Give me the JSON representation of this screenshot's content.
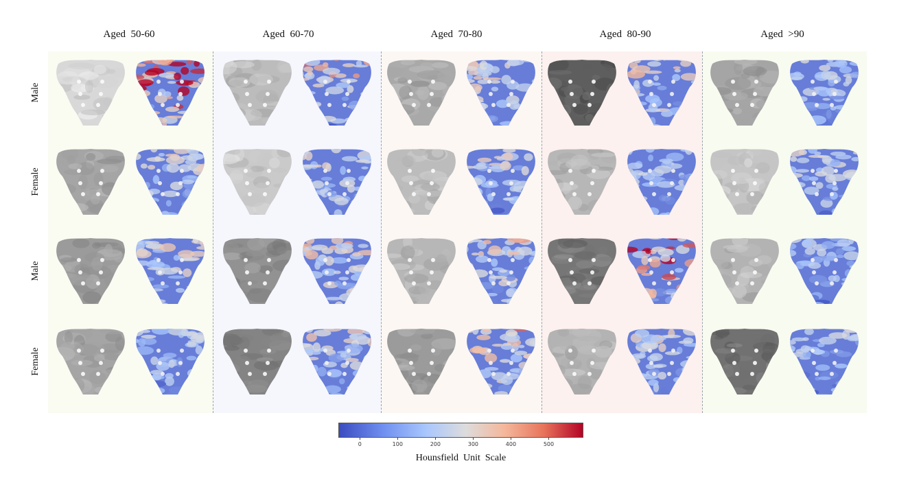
{
  "columns": [
    {
      "title": "Aged  50-60",
      "bg": "#fafcf2"
    },
    {
      "title": "Aged  60-70",
      "bg": "#f6f7fd"
    },
    {
      "title": "Aged  70-80",
      "bg": "#fcf7f3"
    },
    {
      "title": "Aged  80-90",
      "bg": "#fcf1ef"
    },
    {
      "title": "Aged  >90",
      "bg": "#f8fbef"
    }
  ],
  "rows": [
    {
      "label": "Male"
    },
    {
      "label": "Female"
    },
    {
      "label": "Male"
    },
    {
      "label": "Female"
    }
  ],
  "grayscale_tone": [
    [
      0.92,
      0.8,
      0.72,
      0.4,
      0.7
    ],
    [
      0.7,
      0.86,
      0.8,
      0.78,
      0.84
    ],
    [
      0.66,
      0.62,
      0.78,
      0.5,
      0.76
    ],
    [
      0.7,
      0.56,
      0.66,
      0.76,
      0.48
    ]
  ],
  "heat_intensity": [
    [
      0.92,
      0.62,
      0.52,
      0.56,
      0.36
    ],
    [
      0.48,
      0.45,
      0.45,
      0.4,
      0.42
    ],
    [
      0.5,
      0.58,
      0.55,
      0.85,
      0.32
    ],
    [
      0.38,
      0.5,
      0.6,
      0.46,
      0.36
    ]
  ],
  "colorbar": {
    "label": "Hounsfield  Unit  Scale",
    "ticks": [
      "0",
      "100",
      "200",
      "300",
      "400",
      "500"
    ],
    "tick_values": [
      0,
      100,
      200,
      300,
      400,
      500
    ],
    "min": -55,
    "max": 590,
    "colors": [
      "#3b4cc0",
      "#aac7fd",
      "#dddcdc",
      "#f4b79b",
      "#b40426"
    ]
  }
}
